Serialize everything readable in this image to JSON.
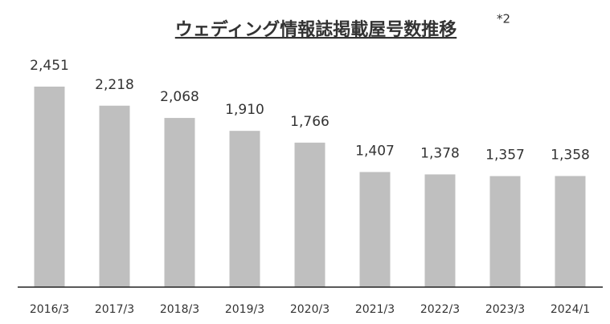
{
  "chart_data": {
    "type": "bar",
    "title": "ウェディング情報誌掲載屋号数推移",
    "title_note": "*2",
    "categories": [
      "2016/3",
      "2017/3",
      "2018/3",
      "2019/3",
      "2020/3",
      "2021/3",
      "2022/3",
      "2023/3",
      "2024/1"
    ],
    "values": [
      2451,
      2218,
      2068,
      1910,
      1766,
      1407,
      1378,
      1357,
      1358
    ],
    "value_labels": [
      "2,451",
      "2,218",
      "2,068",
      "1,910",
      "1,766",
      "1,407",
      "1,378",
      "1,357",
      "1,358"
    ],
    "color": "#bfbfbf"
  }
}
